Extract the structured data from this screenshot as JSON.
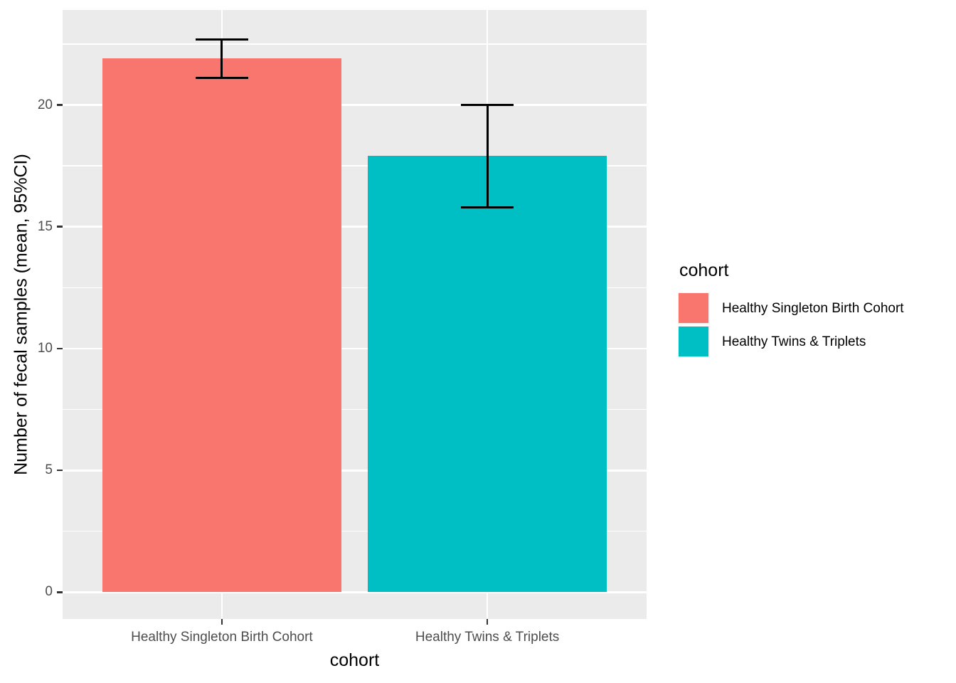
{
  "figure": {
    "xlabel": "cohort",
    "ylabel": "Number of fecal samples (mean, 95%CI)",
    "legend_title": "cohort"
  },
  "chart_data": {
    "type": "bar",
    "title": "",
    "xlabel": "cohort",
    "ylabel": "Number of fecal samples (mean, 95%CI)",
    "categories": [
      "Healthy Singleton Birth Cohort",
      "Healthy Twins & Triplets"
    ],
    "values": [
      21.9,
      17.9
    ],
    "error_bars": {
      "kind": "95% CI",
      "low": [
        21.1,
        15.8
      ],
      "high": [
        22.7,
        20.0
      ]
    },
    "colors": [
      "#F8766D",
      "#00BFC4"
    ],
    "yticks": [
      0,
      5,
      10,
      15,
      20
    ],
    "minor_yticks": [
      2.5,
      7.5,
      12.5,
      17.5,
      22.5
    ],
    "ylim": [
      -1.1,
      23.9
    ],
    "grid": true,
    "legend": {
      "title": "cohort",
      "position": "right",
      "entries": [
        {
          "label": "Healthy Singleton Birth Cohort",
          "color": "#F8766D"
        },
        {
          "label": "Healthy Twins & Triplets",
          "color": "#00BFC4"
        }
      ]
    },
    "theme": {
      "background": "#FFFFFF",
      "panel_bg": "#EBEBEB",
      "grid_color": "#FFFFFF",
      "tick_color": "#333333",
      "tick_label_color": "#4D4D4D",
      "axis_title_color": "#000000",
      "error_bar_color": "#000000",
      "legend_key_bg": "#F2F2F2"
    }
  }
}
